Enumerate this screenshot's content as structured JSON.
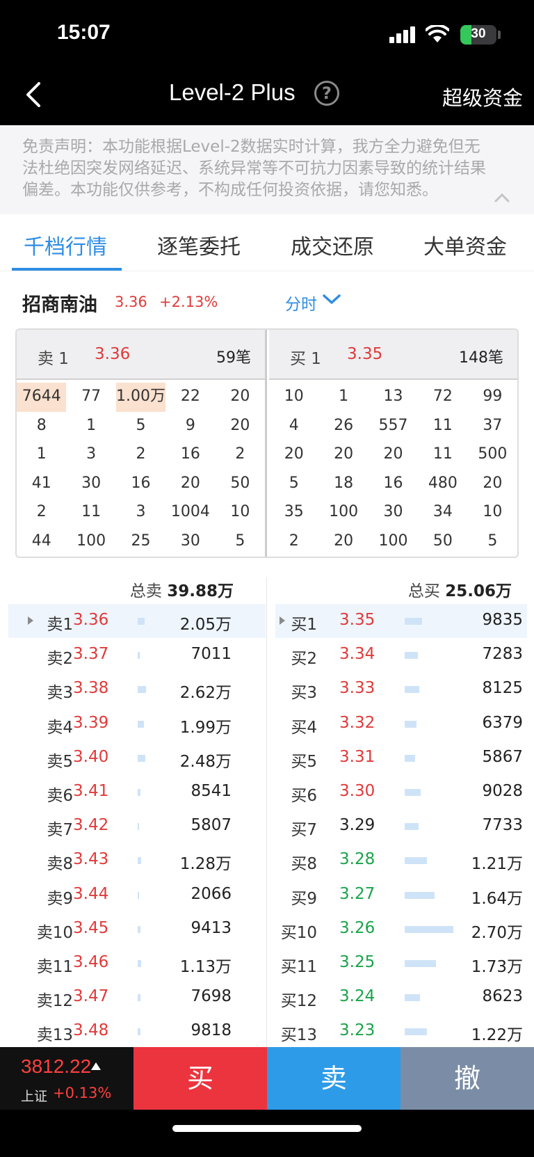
{
  "status": {
    "time": "15:07",
    "battery": "30"
  },
  "nav": {
    "title": "Level-2 Plus",
    "help": "?",
    "right": "超级资金"
  },
  "disclaimer": "免责声明：本功能根据Level-2数据实时计算，我方全力避免但无法杜绝因突发网络延迟、系统异常等不可抗力因素导致的统计结果偏差。本功能仅供参考，不构成任何投资依据，请您知悉。",
  "tabs": [
    "千档行情",
    "逐笔委托",
    "成交还原",
    "大单资金"
  ],
  "stock": {
    "name": "招商南油",
    "price": "3.36",
    "change": "+2.13%",
    "period": "分时"
  },
  "queue": {
    "sell": {
      "label": "卖 1",
      "price": "3.36",
      "count": "59笔",
      "rows": [
        [
          "7644",
          "77",
          "1.00万",
          "22",
          "20"
        ],
        [
          "8",
          "1",
          "5",
          "9",
          "20"
        ],
        [
          "1",
          "3",
          "2",
          "16",
          "2"
        ],
        [
          "41",
          "30",
          "16",
          "20",
          "50"
        ],
        [
          "2",
          "11",
          "3",
          "1004",
          "10"
        ],
        [
          "44",
          "100",
          "25",
          "30",
          "5"
        ]
      ]
    },
    "buy": {
      "label": "买 1",
      "price": "3.35",
      "count": "148笔",
      "rows": [
        [
          "10",
          "1",
          "13",
          "72",
          "99"
        ],
        [
          "4",
          "26",
          "557",
          "11",
          "37"
        ],
        [
          "20",
          "20",
          "20",
          "11",
          "500"
        ],
        [
          "5",
          "18",
          "16",
          "480",
          "20"
        ],
        [
          "35",
          "100",
          "30",
          "34",
          "10"
        ],
        [
          "2",
          "20",
          "100",
          "50",
          "5"
        ]
      ]
    }
  },
  "totals": {
    "sell_label": "总卖",
    "sell_value": "39.88万",
    "buy_label": "总买",
    "buy_value": "25.06万"
  },
  "asks": [
    {
      "label": "卖1",
      "price": "3.36",
      "vol": "2.05万",
      "bar": 0.16
    },
    {
      "label": "卖2",
      "price": "3.37",
      "vol": "7011",
      "bar": 0.05
    },
    {
      "label": "卖3",
      "price": "3.38",
      "vol": "2.62万",
      "bar": 0.2
    },
    {
      "label": "卖4",
      "price": "3.39",
      "vol": "1.99万",
      "bar": 0.15
    },
    {
      "label": "卖5",
      "price": "3.40",
      "vol": "2.48万",
      "bar": 0.19
    },
    {
      "label": "卖6",
      "price": "3.41",
      "vol": "8541",
      "bar": 0.06
    },
    {
      "label": "卖7",
      "price": "3.42",
      "vol": "5807",
      "bar": 0.04
    },
    {
      "label": "卖8",
      "price": "3.43",
      "vol": "1.28万",
      "bar": 0.09
    },
    {
      "label": "卖9",
      "price": "3.44",
      "vol": "2066",
      "bar": 0.015
    },
    {
      "label": "卖10",
      "price": "3.45",
      "vol": "9413",
      "bar": 0.07
    },
    {
      "label": "卖11",
      "price": "3.46",
      "vol": "1.13万",
      "bar": 0.08
    },
    {
      "label": "卖12",
      "price": "3.47",
      "vol": "7698",
      "bar": 0.06
    },
    {
      "label": "卖13",
      "price": "3.48",
      "vol": "9818",
      "bar": 0.07
    }
  ],
  "bids": [
    {
      "label": "买1",
      "price": "3.35",
      "vol": "9835",
      "bar": 0.36,
      "color": "red"
    },
    {
      "label": "买2",
      "price": "3.34",
      "vol": "7283",
      "bar": 0.27,
      "color": "red"
    },
    {
      "label": "买3",
      "price": "3.33",
      "vol": "8125",
      "bar": 0.3,
      "color": "red"
    },
    {
      "label": "买4",
      "price": "3.32",
      "vol": "6379",
      "bar": 0.24,
      "color": "red"
    },
    {
      "label": "买5",
      "price": "3.31",
      "vol": "5867",
      "bar": 0.22,
      "color": "red"
    },
    {
      "label": "买6",
      "price": "3.30",
      "vol": "9028",
      "bar": 0.33,
      "color": "red"
    },
    {
      "label": "买7",
      "price": "3.29",
      "vol": "7733",
      "bar": 0.29,
      "color": "black"
    },
    {
      "label": "买8",
      "price": "3.28",
      "vol": "1.21万",
      "bar": 0.45,
      "color": "green"
    },
    {
      "label": "买9",
      "price": "3.27",
      "vol": "1.64万",
      "bar": 0.61,
      "color": "green"
    },
    {
      "label": "买10",
      "price": "3.26",
      "vol": "2.70万",
      "bar": 1.0,
      "color": "green"
    },
    {
      "label": "买11",
      "price": "3.25",
      "vol": "1.73万",
      "bar": 0.64,
      "color": "green"
    },
    {
      "label": "买12",
      "price": "3.24",
      "vol": "8623",
      "bar": 0.32,
      "color": "green"
    },
    {
      "label": "买13",
      "price": "3.23",
      "vol": "1.22万",
      "bar": 0.45,
      "color": "green"
    }
  ],
  "index": {
    "value": "3812.22",
    "name": "上证",
    "change": "+0.13%"
  },
  "actions": {
    "buy": "买",
    "sell": "卖",
    "cancel": "撤"
  }
}
